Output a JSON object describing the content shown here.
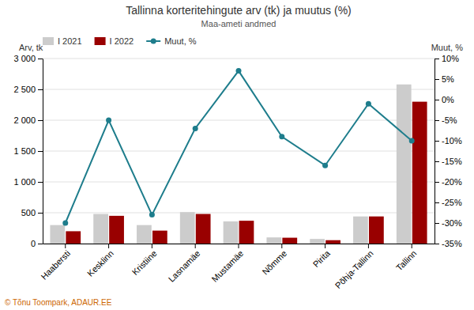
{
  "chart_data": {
    "type": "bar",
    "title": "Tallinna korteritehingute arv (tk) ja muutus (%)",
    "subtitle": "Maa-ameti andmed",
    "ylabel": "Arv, tk",
    "y2label": "Muut, %",
    "annotations": [
      "© Tõnu Toompark, ADAUR.EE"
    ],
    "categories": [
      "Haabersti",
      "Kesklinn",
      "Kristiine",
      "Lasnamäe",
      "Mustamäe",
      "Nõmme",
      "Pirita",
      "Põhja-Tallinn",
      "Tallinn"
    ],
    "series": [
      {
        "name": "I 2021",
        "color": "#cccccc",
        "values": [
          300,
          480,
          300,
          510,
          360,
          100,
          75,
          440,
          2580
        ]
      },
      {
        "name": "I 2022",
        "color": "#990000",
        "values": [
          200,
          450,
          210,
          480,
          370,
          95,
          55,
          440,
          2300
        ]
      },
      {
        "name": "Muut, %",
        "color": "#1e7d8c",
        "type": "line",
        "marker": "circle",
        "axis": "y2",
        "values": [
          -30,
          -5,
          -28,
          -7,
          7,
          -9,
          -16,
          -1,
          -10
        ]
      }
    ],
    "ylim": [
      0,
      3000
    ],
    "yticks": [
      0,
      500,
      {
        "value": 1000,
        "label": "1 000"
      },
      {
        "value": 1500,
        "label": "1 500"
      },
      {
        "value": 2000,
        "label": "2 000"
      },
      {
        "value": 2500,
        "label": "2 500"
      },
      {
        "value": 3000,
        "label": "3 000"
      }
    ],
    "y2lim": [
      -35,
      10
    ],
    "y2ticks": [
      {
        "value": -35,
        "label": "-35%"
      },
      {
        "value": -30,
        "label": "-30%"
      },
      {
        "value": -25,
        "label": "-25%"
      },
      {
        "value": -20,
        "label": "-20%"
      },
      {
        "value": -15,
        "label": "-15%"
      },
      {
        "value": -10,
        "label": "-10%"
      },
      {
        "value": -5,
        "label": "-5%"
      },
      {
        "value": 0,
        "label": "0%"
      },
      {
        "value": 5,
        "label": "5%"
      },
      {
        "value": 10,
        "label": "10%"
      }
    ],
    "grid": true,
    "legend": "top"
  }
}
